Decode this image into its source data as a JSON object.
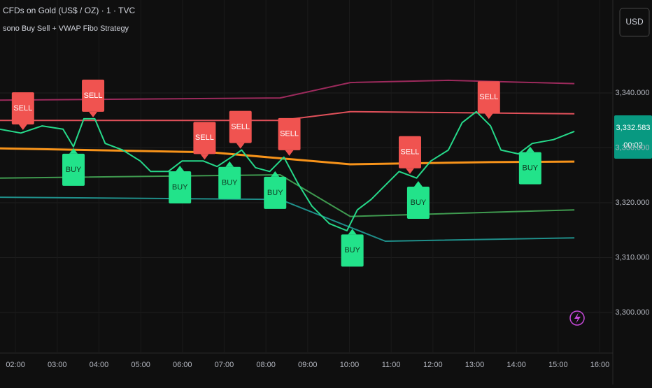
{
  "chart_data": {
    "type": "line",
    "title": "CFDs on Gold (US$ / OZ) · 1 · TVC",
    "subtitle": "sono Buy Sell + VWAP Fibo Strategy",
    "currency": "USD",
    "last_price": "3,332.583",
    "countdown": "00:02",
    "xlim": [
      1.63,
      16.31
    ],
    "ylim": [
      3293.25,
      3356.94
    ],
    "grid": true,
    "xticks": [
      {
        "value": 2,
        "label": "02:00"
      },
      {
        "value": 3,
        "label": "03:00"
      },
      {
        "value": 4,
        "label": "04:00"
      },
      {
        "value": 5,
        "label": "05:00"
      },
      {
        "value": 6,
        "label": "06:00"
      },
      {
        "value": 7,
        "label": "07:00"
      },
      {
        "value": 8,
        "label": "08:00"
      },
      {
        "value": 9,
        "label": "09:00"
      },
      {
        "value": 10,
        "label": "10:00"
      },
      {
        "value": 11,
        "label": "11:00"
      },
      {
        "value": 12,
        "label": "12:00"
      },
      {
        "value": 13,
        "label": "13:00"
      },
      {
        "value": 14,
        "label": "14:00"
      },
      {
        "value": 15,
        "label": "15:00"
      },
      {
        "value": 16,
        "label": "16:00"
      }
    ],
    "yticks": [
      {
        "value": 3300,
        "label": "3,300.000"
      },
      {
        "value": 3310,
        "label": "3,310.000"
      },
      {
        "value": 3320,
        "label": "3,320.000"
      },
      {
        "value": 3330,
        "label": "3,330.000"
      },
      {
        "value": 3340,
        "label": "3,340.000"
      }
    ],
    "series": [
      {
        "color": "#26d98a",
        "width": 2,
        "x": [
          1.63,
          2.13,
          2.64,
          3.14,
          3.39,
          3.64,
          3.9,
          4.15,
          4.57,
          4.99,
          5.24,
          5.66,
          5.99,
          6.5,
          6.83,
          7.17,
          7.42,
          7.75,
          8.09,
          8.43,
          8.76,
          9.1,
          9.52,
          9.94,
          10.19,
          10.52,
          10.86,
          11.19,
          11.61,
          11.95,
          12.37,
          12.7,
          13.04,
          13.38,
          13.63,
          14.05,
          14.38,
          14.89,
          15.39
        ],
        "values": [
          3333.4,
          3332.7,
          3334.0,
          3333.4,
          3330.2,
          3335.3,
          3335.3,
          3330.8,
          3329.6,
          3327.6,
          3325.7,
          3325.7,
          3327.6,
          3327.6,
          3326.6,
          3328.3,
          3329.6,
          3326.4,
          3325.7,
          3328.3,
          3323.6,
          3319.4,
          3316.2,
          3314.9,
          3318.7,
          3320.6,
          3323.2,
          3325.7,
          3324.5,
          3327.6,
          3329.6,
          3334.6,
          3336.6,
          3334.0,
          3329.6,
          3328.9,
          3330.8,
          3331.5,
          3333.0
        ]
      },
      {
        "color": "#f7931a",
        "width": 3,
        "x": [
          1.63,
          6.66,
          10.02,
          13.38,
          15.39
        ],
        "values": [
          3329.9,
          3329.2,
          3327.0,
          3327.4,
          3327.5
        ]
      },
      {
        "color": "#9c2a5c",
        "width": 2,
        "x": [
          1.63,
          8.34,
          10.02,
          12.37,
          15.39
        ],
        "values": [
          3338.7,
          3339.1,
          3341.9,
          3342.3,
          3341.7
        ]
      },
      {
        "color": "#e0505a",
        "width": 2,
        "x": [
          1.63,
          8.34,
          10.02,
          15.39
        ],
        "values": [
          3335.0,
          3335.0,
          3336.6,
          3336.2
        ]
      },
      {
        "color": "#3f9a4f",
        "width": 2,
        "x": [
          1.63,
          8.34,
          10.02,
          15.39
        ],
        "values": [
          3324.5,
          3325.1,
          3317.5,
          3318.7
        ]
      },
      {
        "color": "#1f8f8a",
        "width": 2,
        "x": [
          1.63,
          8.34,
          10.86,
          15.39
        ],
        "values": [
          3321.0,
          3320.6,
          3313.0,
          3313.6
        ]
      }
    ],
    "signals": [
      {
        "label": "SELL",
        "x": 2.18,
        "value": 3333.0
      },
      {
        "label": "BUY",
        "x": 3.39,
        "value": 3330.2
      },
      {
        "label": "SELL",
        "x": 3.86,
        "value": 3335.3
      },
      {
        "label": "BUY",
        "x": 5.94,
        "value": 3327.0
      },
      {
        "label": "SELL",
        "x": 6.53,
        "value": 3327.6
      },
      {
        "label": "BUY",
        "x": 7.13,
        "value": 3327.8
      },
      {
        "label": "SELL",
        "x": 7.39,
        "value": 3329.6
      },
      {
        "label": "BUY",
        "x": 8.22,
        "value": 3326.0
      },
      {
        "label": "SELL",
        "x": 8.56,
        "value": 3328.3
      },
      {
        "label": "BUY",
        "x": 10.07,
        "value": 3315.5
      },
      {
        "label": "SELL",
        "x": 11.45,
        "value": 3325.0
      },
      {
        "label": "BUY",
        "x": 11.65,
        "value": 3324.2
      },
      {
        "label": "SELL",
        "x": 13.34,
        "value": 3335.0
      },
      {
        "label": "BUY",
        "x": 14.33,
        "value": 3330.5
      }
    ]
  }
}
